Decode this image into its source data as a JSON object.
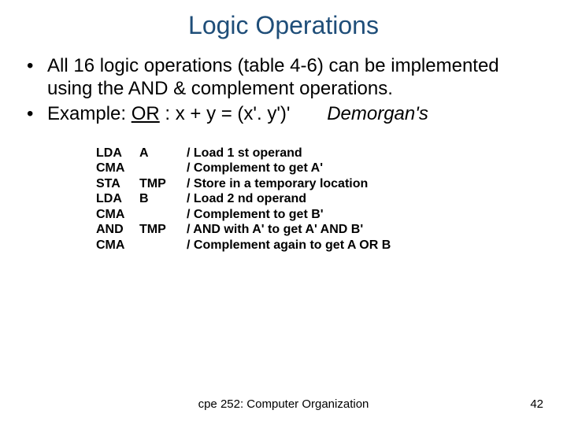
{
  "title": "Logic Operations",
  "bullets": {
    "b1": "All 16 logic operations (table 4-6) can be implemented using the AND & complement operations.",
    "b2_prefix": "Example: ",
    "b2_or": "OR",
    "b2_eq": " : x + y = (x'. y')'",
    "b2_demorgan": "Demorgan's"
  },
  "code": [
    {
      "op": "LDA",
      "arg": "A",
      "c": "/ Load 1 st operand"
    },
    {
      "op": "CMA",
      "arg": "",
      "c": "/ Complement to get A'"
    },
    {
      "op": "STA",
      "arg": "TMP",
      "c": "/ Store in a temporary location"
    },
    {
      "op": "LDA",
      "arg": "B",
      "c": "/ Load 2 nd operand"
    },
    {
      "op": "CMA",
      "arg": "",
      "c": "/ Complement to get B'"
    },
    {
      "op": "AND",
      "arg": " TMP",
      "c": "/ AND with A' to get A' AND B'"
    },
    {
      "op": "CMA",
      "arg": "",
      "c": "/ Complement again to get A OR B"
    }
  ],
  "footer": {
    "center": "cpe 252: Computer Organization",
    "page": "42"
  }
}
